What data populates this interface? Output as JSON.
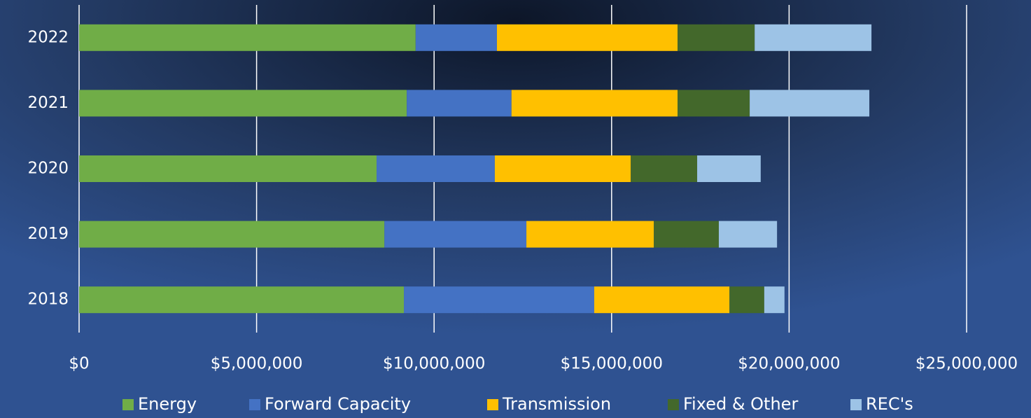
{
  "chart_data": {
    "type": "stacked-barh",
    "categories": [
      "2018",
      "2019",
      "2020",
      "2021",
      "2022"
    ],
    "series": [
      {
        "name": "Energy",
        "color": "#70ad47",
        "values": [
          9150000,
          8600000,
          8380000,
          9230000,
          9480000
        ]
      },
      {
        "name": "Forward Capacity",
        "color": "#4472c4",
        "values": [
          5360000,
          4000000,
          3330000,
          2950000,
          2290000
        ]
      },
      {
        "name": "Transmission",
        "color": "#ffc000",
        "values": [
          3810000,
          3590000,
          3830000,
          4680000,
          5090000
        ]
      },
      {
        "name": "Fixed & Other",
        "color": "#43682b",
        "values": [
          980000,
          1830000,
          1870000,
          2030000,
          2170000
        ]
      },
      {
        "name": "REC's",
        "color": "#9dc3e6",
        "values": [
          570000,
          1640000,
          1790000,
          3370000,
          3290000
        ]
      }
    ],
    "xlim": [
      0,
      25000000
    ],
    "xticks": [
      {
        "value": 0,
        "label": "$0"
      },
      {
        "value": 5000000,
        "label": "$5,000,000"
      },
      {
        "value": 10000000,
        "label": "$10,000,000"
      },
      {
        "value": 15000000,
        "label": "$15,000,000"
      },
      {
        "value": 20000000,
        "label": "$20,000,000"
      },
      {
        "value": 25000000,
        "label": "$25,000,000"
      }
    ],
    "grid": true,
    "legend": "bottom"
  }
}
